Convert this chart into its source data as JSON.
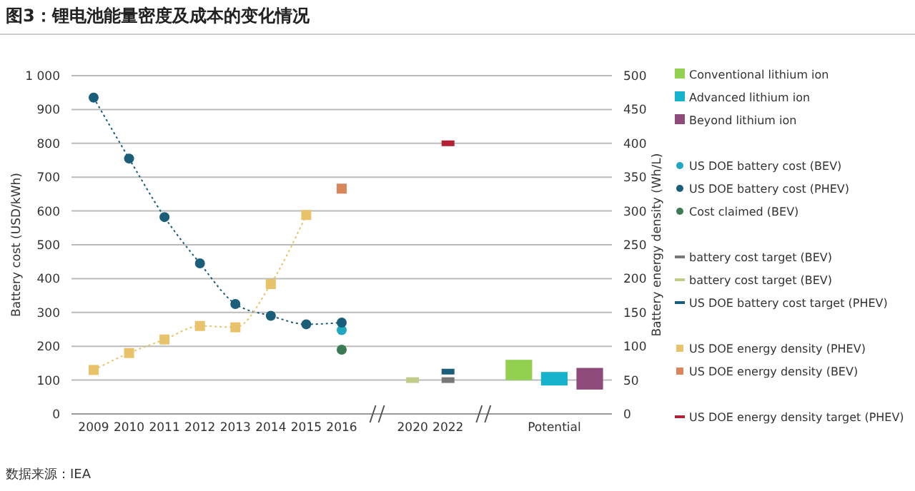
{
  "chart_data": {
    "type": "scatter",
    "title": "图3：锂电池能量密度及成本的变化情况",
    "ylabel": "Battery cost (USD/kWh)",
    "y2label": "Battery energy density (Wh/L)",
    "annotations": [
      "数据来源：IEA"
    ],
    "categories": [
      "2009",
      "2010",
      "2011",
      "2012",
      "2013",
      "2014",
      "2015",
      "2016",
      null,
      "2020",
      "2022",
      null,
      null,
      "Potential",
      null
    ],
    "ylim": [
      0,
      1000
    ],
    "yticks": [
      0,
      100,
      200,
      300,
      400,
      500,
      600,
      700,
      800,
      900,
      {
        "value": 1000,
        "label": "1 000"
      }
    ],
    "y2lim": [
      0,
      500
    ],
    "y2ticks": [
      0,
      50,
      100,
      150,
      200,
      250,
      300,
      350,
      400,
      450,
      500
    ],
    "grid": "y",
    "legend": "right",
    "series": [
      {
        "name": "Conventional lithium ion",
        "type": "bar",
        "axis": "y2",
        "color": "#92d050",
        "values": [
          null,
          null,
          null,
          null,
          null,
          null,
          null,
          null,
          null,
          null,
          null,
          null,
          30,
          null,
          null
        ],
        "base": [
          null,
          null,
          null,
          null,
          null,
          null,
          null,
          null,
          null,
          null,
          null,
          null,
          50,
          null,
          null
        ]
      },
      {
        "name": "Advanced lithium ion",
        "type": "bar",
        "axis": "y2",
        "color": "#17b3cc",
        "values": [
          null,
          null,
          null,
          null,
          null,
          null,
          null,
          null,
          null,
          null,
          null,
          null,
          null,
          20,
          null
        ],
        "base": [
          null,
          null,
          null,
          null,
          null,
          null,
          null,
          null,
          null,
          null,
          null,
          null,
          null,
          42,
          null
        ]
      },
      {
        "name": "Beyond lithium ion",
        "type": "bar",
        "axis": "y2",
        "color": "#8e4a7a",
        "values": [
          null,
          null,
          null,
          null,
          null,
          null,
          null,
          null,
          null,
          null,
          null,
          null,
          null,
          null,
          32
        ],
        "base": [
          null,
          null,
          null,
          null,
          null,
          null,
          null,
          null,
          null,
          null,
          null,
          null,
          null,
          null,
          36
        ]
      },
      {
        "name": "US DOE battery cost (BEV)",
        "marker": "circle",
        "color": "#1fa8c0",
        "values": [
          null,
          null,
          null,
          null,
          null,
          null,
          null,
          248,
          null,
          null,
          null,
          null,
          null,
          null,
          null
        ]
      },
      {
        "name": "US DOE battery cost (PHEV)",
        "type": "line",
        "marker": "circle",
        "line_style": "dotted",
        "color": "#1a5e7a",
        "values": [
          935,
          755,
          582,
          445,
          325,
          290,
          265,
          270,
          null,
          null,
          null,
          null,
          null,
          null,
          null
        ]
      },
      {
        "name": "Cost claimed (BEV)",
        "marker": "circle",
        "color": "#3a7a55",
        "values": [
          null,
          null,
          null,
          null,
          null,
          null,
          null,
          190,
          null,
          null,
          null,
          null,
          null,
          null,
          null
        ]
      },
      {
        "name": "battery cost target (BEV)",
        "type": "scatter",
        "color": "#777777",
        "values": [
          null,
          null,
          null,
          null,
          null,
          null,
          null,
          null,
          null,
          null,
          100,
          null,
          null,
          null,
          null
        ]
      },
      {
        "name": "battery cost target (BEV)",
        "type": "scatter",
        "color": "#c2cc8a",
        "values": [
          null,
          null,
          null,
          null,
          null,
          null,
          null,
          null,
          null,
          100,
          null,
          null,
          null,
          null,
          null
        ]
      },
      {
        "name": "US DOE battery cost target (PHEV)",
        "type": "scatter",
        "color": "#1a5e7a",
        "values": [
          null,
          null,
          null,
          null,
          null,
          null,
          null,
          null,
          null,
          null,
          125,
          null,
          null,
          null,
          null
        ]
      },
      {
        "name": "US DOE energy density (PHEV)",
        "type": "line",
        "axis": "y2",
        "marker": "square",
        "line_style": "dotted",
        "color": "#e8c36a",
        "values": [
          65,
          90,
          110,
          130,
          128,
          192,
          294,
          null,
          null,
          null,
          null,
          null,
          null,
          null,
          null
        ]
      },
      {
        "name": "US DOE energy density (BEV)",
        "axis": "y2",
        "marker": "square",
        "color": "#d9875a",
        "values": [
          null,
          null,
          null,
          null,
          null,
          null,
          null,
          333,
          null,
          null,
          null,
          null,
          null,
          null,
          null
        ]
      },
      {
        "name": "US DOE energy density target (PHEV)",
        "type": "scatter",
        "axis": "y2",
        "color": "#b22234",
        "values": [
          null,
          null,
          null,
          null,
          null,
          null,
          null,
          null,
          null,
          null,
          400,
          null,
          null,
          null,
          null
        ]
      }
    ]
  }
}
